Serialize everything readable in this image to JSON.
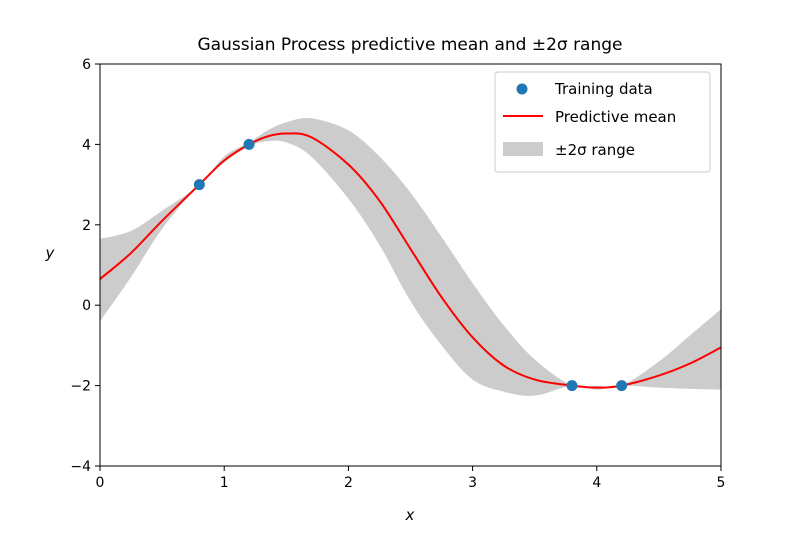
{
  "chart_data": {
    "type": "line",
    "title": "Gaussian Process predictive mean and ±2σ range",
    "xlabel": "x",
    "ylabel": "y",
    "xlim": [
      0,
      5
    ],
    "ylim": [
      -4,
      6
    ],
    "xticks": [
      0,
      1,
      2,
      3,
      4,
      5
    ],
    "yticks": [
      -4,
      -2,
      0,
      2,
      4,
      6
    ],
    "ytick_labels": [
      "−4",
      "−2",
      "0",
      "2",
      "4",
      "6"
    ],
    "grid": false,
    "legend_position": "top-right",
    "training_data": {
      "name": "Training data",
      "color": "#1f77b4",
      "x": [
        0.8,
        1.2,
        3.8,
        4.2
      ],
      "y": [
        3.0,
        4.0,
        -2.0,
        -2.0
      ]
    },
    "predictive_mean": {
      "name": "Predictive mean",
      "color": "#ff0000",
      "x": [
        0.0,
        0.25,
        0.5,
        0.8,
        1.0,
        1.2,
        1.35,
        1.5,
        1.7,
        2.0,
        2.25,
        2.5,
        2.75,
        3.0,
        3.25,
        3.5,
        3.8,
        4.0,
        4.2,
        4.5,
        4.75,
        5.0
      ],
      "y": [
        0.65,
        1.3,
        2.1,
        3.0,
        3.6,
        4.0,
        4.2,
        4.27,
        4.18,
        3.5,
        2.6,
        1.4,
        0.2,
        -0.8,
        -1.5,
        -1.85,
        -2.0,
        -2.05,
        -2.0,
        -1.75,
        -1.45,
        -1.05
      ]
    },
    "uncertainty_band": {
      "name": "±2σ range",
      "color": "#cccccc",
      "x": [
        0.0,
        0.25,
        0.5,
        0.8,
        1.0,
        1.2,
        1.35,
        1.5,
        1.7,
        2.0,
        2.25,
        2.5,
        2.75,
        3.0,
        3.25,
        3.5,
        3.8,
        4.0,
        4.2,
        4.5,
        4.75,
        5.0
      ],
      "upper": [
        1.65,
        1.85,
        2.35,
        3.0,
        3.7,
        4.05,
        4.35,
        4.55,
        4.65,
        4.35,
        3.7,
        2.8,
        1.7,
        0.55,
        -0.5,
        -1.35,
        -2.0,
        -2.0,
        -2.0,
        -1.4,
        -0.75,
        -0.1
      ],
      "lower": [
        -0.4,
        0.7,
        1.9,
        3.0,
        3.55,
        3.95,
        4.08,
        4.05,
        3.7,
        2.65,
        1.5,
        0.1,
        -1.0,
        -1.85,
        -2.15,
        -2.25,
        -2.0,
        -2.1,
        -2.0,
        -2.05,
        -2.08,
        -2.1
      ]
    }
  }
}
